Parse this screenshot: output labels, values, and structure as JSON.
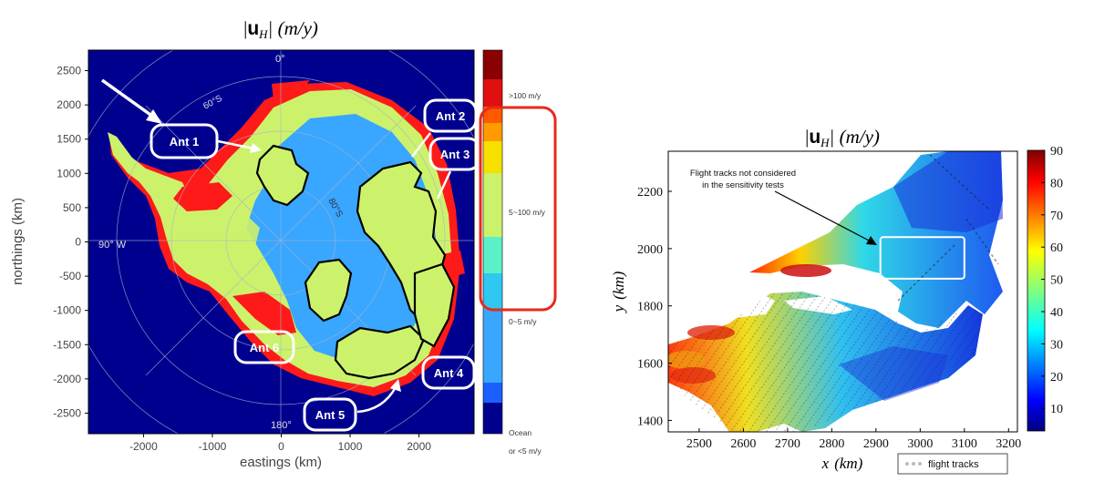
{
  "left_panel": {
    "title": "|u_H| (m/y)",
    "title_parts": {
      "bar": "|",
      "u": "u",
      "sub": "H",
      "rest": "| (m/y)"
    },
    "xlabel": "eastings (km)",
    "ylabel": "northings (km)",
    "x_ticks": [
      "-2000",
      "-1000",
      "0",
      "1000",
      "2000"
    ],
    "y_ticks": [
      "-2500",
      "-2000",
      "-1500",
      "-1000",
      "-500",
      "0",
      "500",
      "1000",
      "1500",
      "2000",
      "2500"
    ],
    "grid_labels": {
      "top": "0°",
      "left": "90° W",
      "bottom": "180°",
      "lat60": "60°S",
      "lat80": "80°S"
    },
    "regions": [
      "Ant 1",
      "Ant 2",
      "Ant 3",
      "Ant 4",
      "Ant 5",
      "Ant 6"
    ],
    "colorbar_labels": {
      "high": ">100 m/y",
      "mid": "5~100 m/y",
      "low": "0~5 m/y",
      "ocean1": "Ocean",
      "ocean2": "or <5 m/y"
    },
    "colors": {
      "ocean": "#00008f",
      "low": "#39a6ff",
      "mid": "#ccf26c",
      "high": "#ff1a1a",
      "highlight": "#e8281e"
    }
  },
  "chart_data": [
    {
      "type": "heatmap",
      "title": "|u_H| (m/y)",
      "xlabel": "eastings (km)",
      "ylabel": "northings (km)",
      "xlim": [
        -2800,
        2800
      ],
      "ylim": [
        2800,
        -2800
      ],
      "x_ticks": [
        -2000,
        -1000,
        0,
        1000,
        2000
      ],
      "y_ticks": [
        -2500,
        -2000,
        -1500,
        -1000,
        -500,
        0,
        500,
        1000,
        1500,
        2000,
        2500
      ],
      "colorbar": [
        "Ocean or <5 m/y",
        "0~5 m/y",
        "5~100 m/y",
        ">100 m/y"
      ],
      "regions": [
        "Ant 1",
        "Ant 2",
        "Ant 3",
        "Ant 4",
        "Ant 5",
        "Ant 6"
      ]
    },
    {
      "type": "heatmap",
      "title": "|u_H| (m/y)",
      "xlabel": "x (km)",
      "ylabel": "y (km)",
      "xlim": [
        2430,
        3220
      ],
      "ylim": [
        1360,
        2340
      ],
      "x_ticks": [
        2500,
        2600,
        2700,
        2800,
        2900,
        3000,
        3100,
        3200
      ],
      "y_ticks": [
        1400,
        1600,
        1800,
        2000,
        2200
      ],
      "colorbar_range": [
        3,
        90
      ],
      "colorbar_ticks": [
        10,
        20,
        30,
        40,
        50,
        60,
        70,
        80,
        90
      ],
      "legend": "flight tracks",
      "legend_position": "bottom-right",
      "annotation": [
        "Flight tracks not considered",
        "in the sensitivity tests"
      ],
      "highlight_box": {
        "x": [
          2910,
          3100
        ],
        "y": [
          1895,
          2040
        ]
      }
    }
  ],
  "right_panel": {
    "title_parts": {
      "bar": "|",
      "u": "u",
      "sub": "H",
      "rest": "| (m/y)"
    },
    "xlabel_var": "x",
    "xlabel_unit": "(km)",
    "ylabel_var": "y",
    "ylabel_unit": "(km)",
    "x_ticks": [
      "2500",
      "2600",
      "2700",
      "2800",
      "2900",
      "3000",
      "3100",
      "3200"
    ],
    "y_ticks": [
      "1400",
      "1600",
      "1800",
      "2000",
      "2200"
    ],
    "colorbar_ticks": [
      "10",
      "20",
      "30",
      "40",
      "50",
      "60",
      "70",
      "80",
      "90"
    ],
    "legend": "flight tracks",
    "annotation_line1": "Flight tracks not considered",
    "annotation_line2": "in the sensitivity tests"
  }
}
